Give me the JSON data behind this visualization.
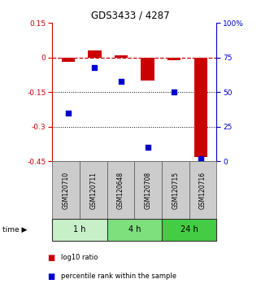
{
  "title": "GDS3433 / 4287",
  "samples": [
    "GSM120710",
    "GSM120711",
    "GSM120648",
    "GSM120708",
    "GSM120715",
    "GSM120716"
  ],
  "log10_ratio": [
    -0.02,
    0.03,
    0.01,
    -0.1,
    -0.01,
    -0.43
  ],
  "percentile_rank": [
    35,
    68,
    58,
    10,
    50,
    2
  ],
  "groups": [
    {
      "label": "1 h",
      "indices": [
        0,
        1
      ],
      "color": "#c8f0c8"
    },
    {
      "label": "4 h",
      "indices": [
        2,
        3
      ],
      "color": "#7de07d"
    },
    {
      "label": "24 h",
      "indices": [
        4,
        5
      ],
      "color": "#44cc44"
    }
  ],
  "red_color": "#cc0000",
  "blue_color": "#0000cc",
  "ylim_left": [
    -0.45,
    0.15
  ],
  "ylim_right": [
    0,
    100
  ],
  "yticks_left": [
    0.15,
    0,
    -0.15,
    -0.3,
    -0.45
  ],
  "yticks_right": [
    100,
    75,
    50,
    25,
    0
  ],
  "hline_y": 0,
  "dotted_lines": [
    -0.15,
    -0.3
  ],
  "bar_width": 0.5,
  "legend_labels": [
    "log10 ratio",
    "percentile rank within the sample"
  ],
  "sample_box_color": "#cccccc",
  "sample_box_edge": "#555555"
}
